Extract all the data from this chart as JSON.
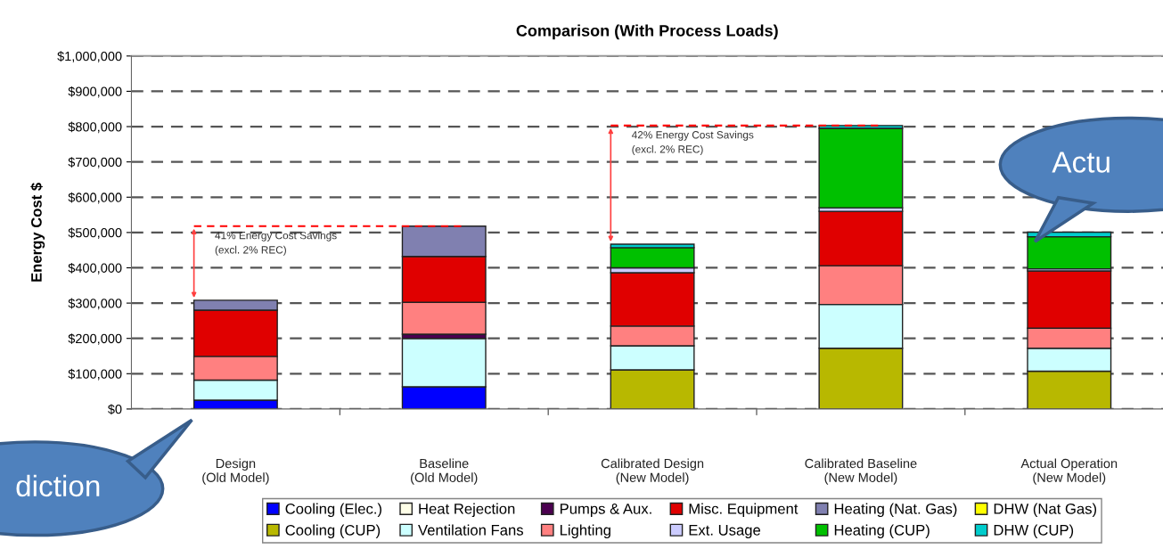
{
  "chart_data": {
    "type": "bar",
    "stacked": true,
    "title": "Comparison (With Process Loads)",
    "ylabel": "Energy Cost $",
    "categories": [
      "Design\n(Old Model)",
      "Baseline\n(Old Model)",
      "Calibrated Design\n(New Model)",
      "Calibrated Baseline\n(New Model)",
      "Actual Operation\n(New Model)"
    ],
    "series": [
      {
        "name": "Cooling (Elec.)",
        "color": "#0000ff",
        "values": [
          25000,
          63000,
          null,
          null,
          null
        ]
      },
      {
        "name": "Cooling (CUP)",
        "color": "#b8b800",
        "values": [
          null,
          null,
          111000,
          172000,
          107000
        ]
      },
      {
        "name": "Heat Rejection",
        "color": "#ffffe8",
        "values": [
          null,
          null,
          null,
          null,
          null
        ]
      },
      {
        "name": "Ventilation Fans",
        "color": "#ccffff",
        "values": [
          57000,
          137000,
          68000,
          124000,
          65000
        ]
      },
      {
        "name": "Pumps & Aux.",
        "color": "#4b0050",
        "values": [
          null,
          12000,
          null,
          null,
          null
        ]
      },
      {
        "name": "Lighting",
        "color": "#ff8080",
        "values": [
          67000,
          90000,
          56000,
          110000,
          57000
        ]
      },
      {
        "name": "Misc. Equipment",
        "color": "#e00000",
        "values": [
          131000,
          130000,
          151000,
          154000,
          162000
        ]
      },
      {
        "name": "Ext. Usage",
        "color": "#ccccff",
        "values": [
          null,
          null,
          14000,
          10000,
          6000
        ]
      },
      {
        "name": "Heating (Nat. Gas)",
        "color": "#8080b0",
        "values": [
          28000,
          86000,
          null,
          null,
          null
        ]
      },
      {
        "name": "Heating (CUP)",
        "color": "#00c000",
        "values": [
          null,
          null,
          57000,
          225000,
          91000
        ]
      },
      {
        "name": "DHW (Nat Gas)",
        "color": "#ffff00",
        "values": [
          null,
          null,
          null,
          null,
          null
        ]
      },
      {
        "name": "DHW (CUP)",
        "color": "#00cccc",
        "values": [
          null,
          null,
          10000,
          8000,
          13000
        ]
      }
    ],
    "ylim": [
      0,
      1000000
    ],
    "yticks": [
      {
        "value": 0,
        "label": "$0"
      },
      {
        "value": 100000,
        "label": "$100,000"
      },
      {
        "value": 200000,
        "label": "$200,000"
      },
      {
        "value": 300000,
        "label": "$300,000"
      },
      {
        "value": 400000,
        "label": "$400,000"
      },
      {
        "value": 500000,
        "label": "$500,000"
      },
      {
        "value": 600000,
        "label": "$600,000"
      },
      {
        "value": 700000,
        "label": "$700,000"
      },
      {
        "value": 800000,
        "label": "$800,000"
      },
      {
        "value": 900000,
        "label": "$900,000"
      },
      {
        "value": 1000000,
        "label": "$1,000,000"
      }
    ],
    "grid": "y",
    "line_style": "dashed",
    "legend": "bottom",
    "annotations": [
      "41% Energy Cost Savings\n(excl. 2% REC)",
      "42% Energy Cost Savings\n(excl. 2% REC)",
      "diction",
      "Actu"
    ]
  }
}
